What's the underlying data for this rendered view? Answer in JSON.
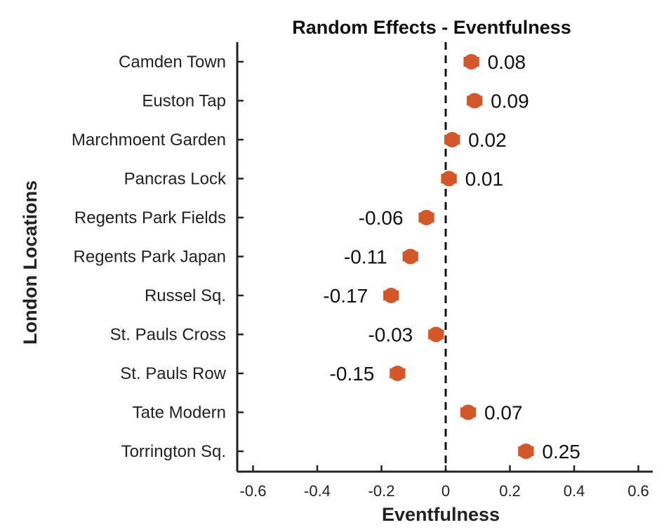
{
  "chart_data": {
    "type": "scatter",
    "title": "Random Effects - Eventfulness",
    "xlabel": "Eventfulness",
    "ylabel": "London Locations",
    "xlim": [
      -0.65,
      0.65
    ],
    "xticks": [
      -0.6,
      -0.4,
      -0.2,
      0,
      0.2,
      0.4,
      0.6
    ],
    "xtick_labels": [
      "-0.6",
      "-0.4",
      "-0.2",
      "0",
      "0.2",
      "0.4",
      "0.6"
    ],
    "reference_line": 0,
    "categories": [
      "Camden Town",
      "Euston Tap",
      "Marchmoent Garden",
      "Pancras Lock",
      "Regents Park Fields",
      "Regents Park Japan",
      "Russel Sq.",
      "St. Pauls Cross",
      "St. Pauls Row",
      "Tate Modern",
      "Torrington Sq."
    ],
    "values": [
      0.08,
      0.09,
      0.02,
      0.01,
      -0.06,
      -0.11,
      -0.17,
      -0.03,
      -0.15,
      0.07,
      0.25
    ],
    "value_labels": [
      "0.08",
      "0.09",
      "0.02",
      "0.01",
      "-0.06",
      "-0.11",
      "-0.17",
      "-0.03",
      "-0.15",
      "0.07",
      "0.25"
    ],
    "error_half_width": 0.02,
    "marker_color": "#D4572A",
    "grid": false
  }
}
